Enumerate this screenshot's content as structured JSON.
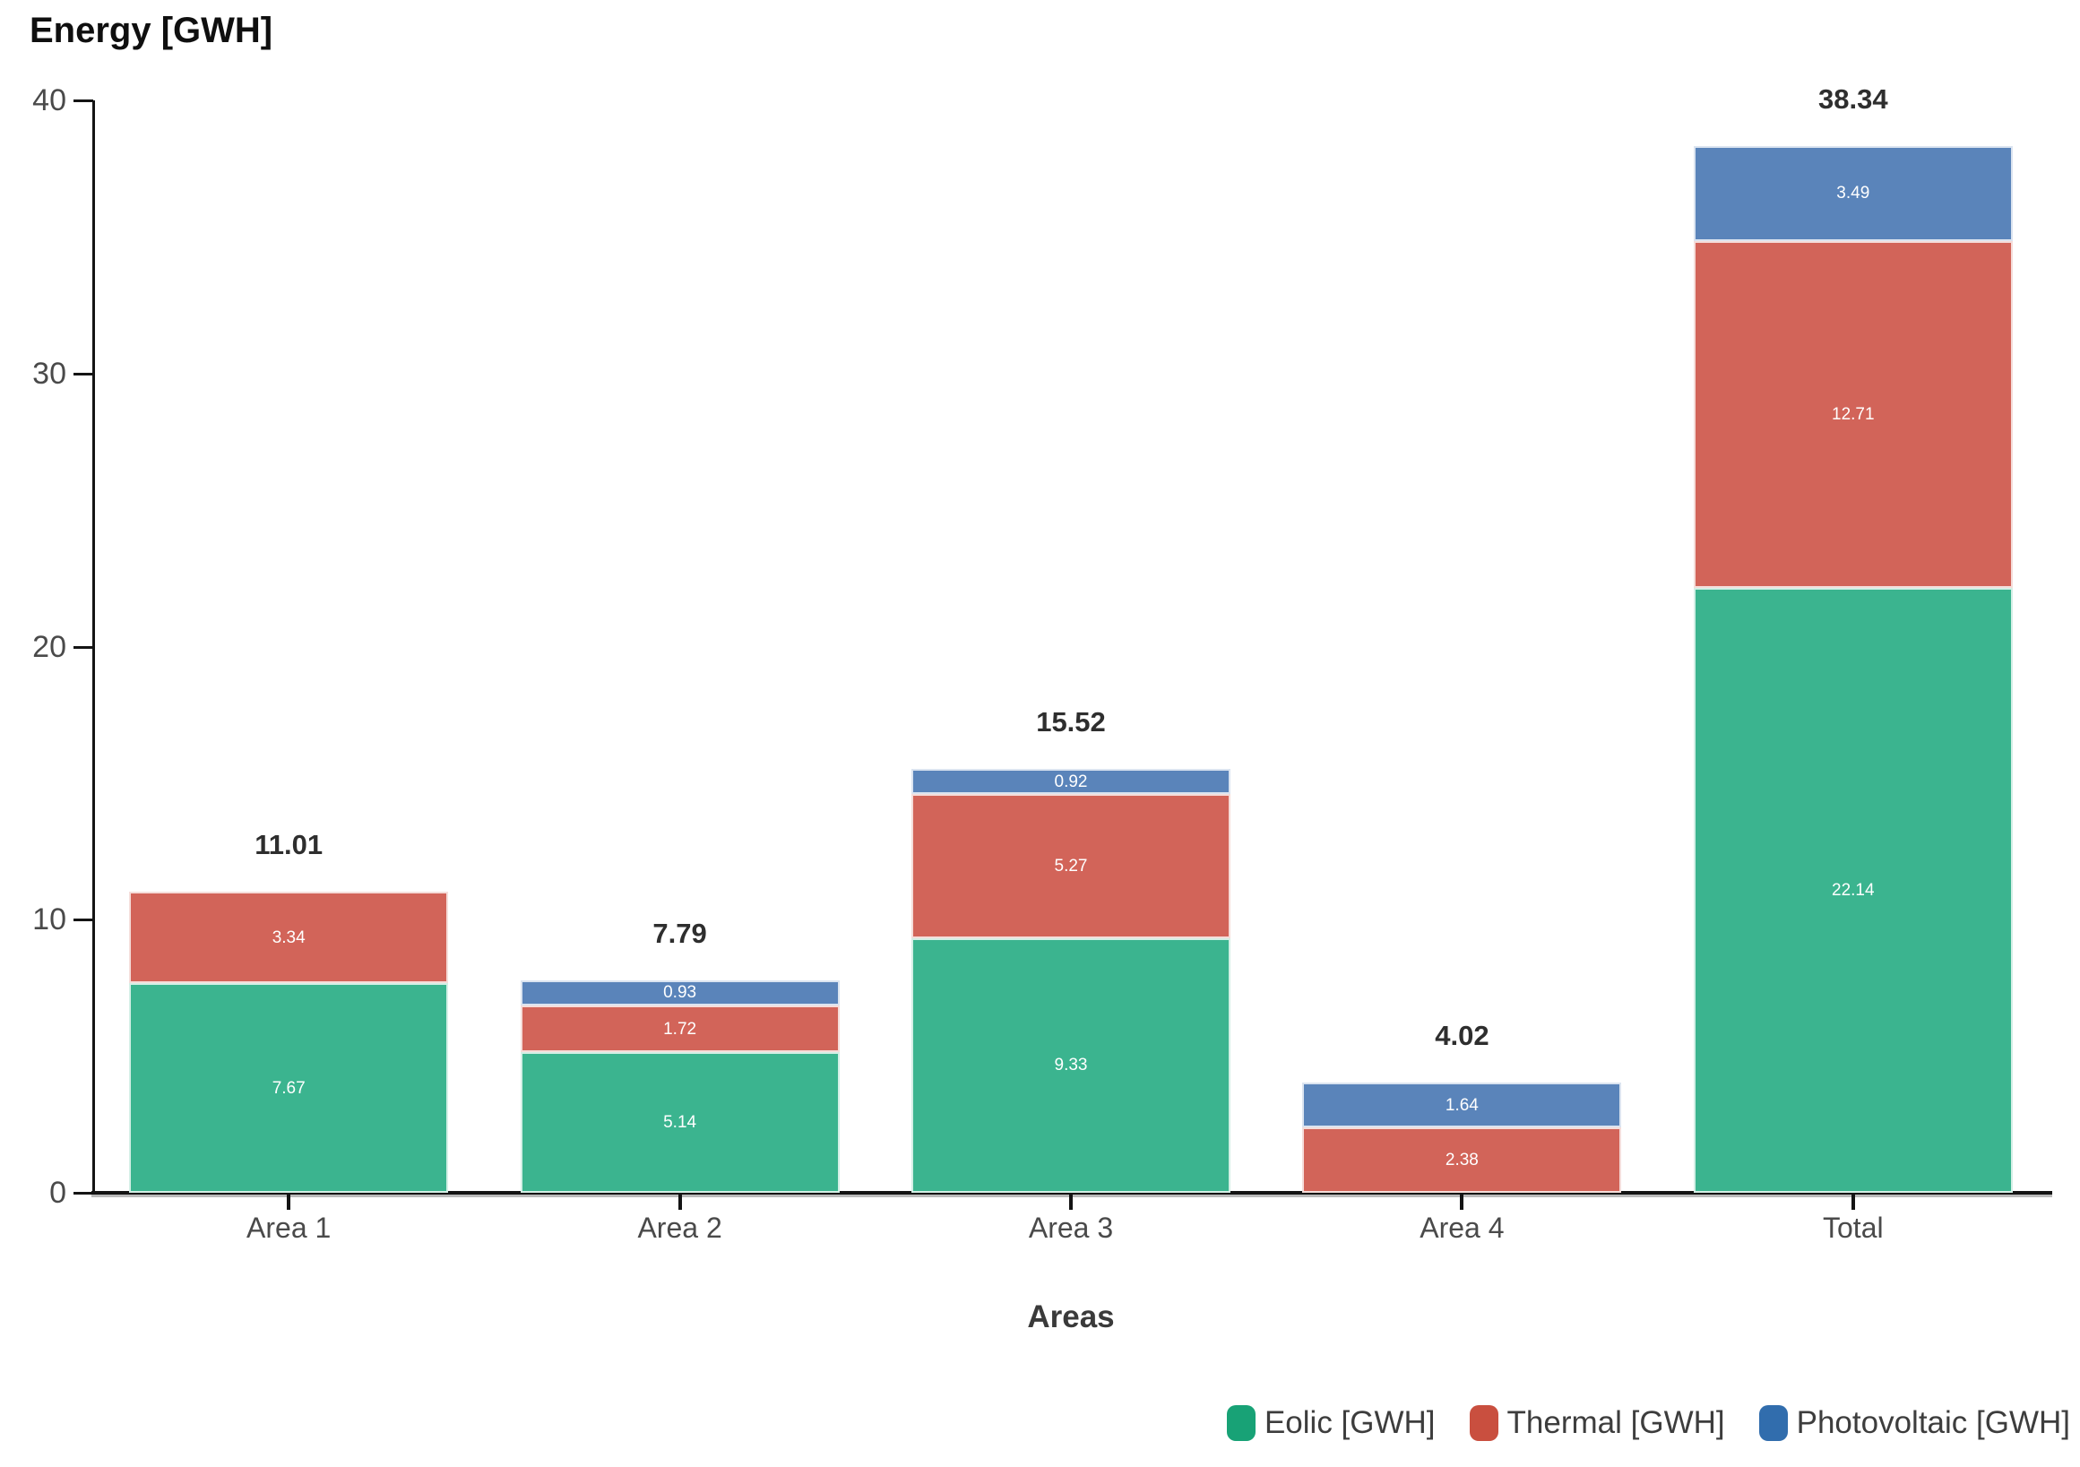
{
  "chart_data": {
    "type": "bar",
    "stacked": true,
    "title": "Energy [GWH]",
    "xlabel": "Areas",
    "ylabel": "Energy [GWH]",
    "categories": [
      "Area 1",
      "Area 2",
      "Area 3",
      "Area 4",
      "Total"
    ],
    "series": [
      {
        "name": "Eolic [GWH]",
        "key": "eolic",
        "legend_color": "#18A276",
        "fill_color": "#3BB48F",
        "values": [
          7.67,
          5.14,
          9.33,
          0,
          22.14
        ]
      },
      {
        "name": "Thermal [GWH]",
        "key": "thermal",
        "legend_color": "#C94F3F",
        "fill_color": "#D26459",
        "values": [
          3.34,
          1.72,
          5.27,
          2.38,
          12.71
        ]
      },
      {
        "name": "Photovoltaic [GWH]",
        "key": "photovoltaic",
        "legend_color": "#316DAD",
        "fill_color": "#5A84BA",
        "values": [
          0,
          0.93,
          0.92,
          1.64,
          3.49
        ]
      }
    ],
    "bar_totals": [
      "11.01",
      "7.79",
      "15.52",
      "4.02",
      "38.34"
    ],
    "ylim": [
      0,
      40
    ],
    "yticks": [
      "0",
      "10",
      "20",
      "30",
      "40"
    ],
    "grid": false,
    "legend_position": "bottom-right",
    "axis_color": "#141414",
    "tick_label_color": "#4a4a4a",
    "segment_label_color": "#ffffff"
  }
}
